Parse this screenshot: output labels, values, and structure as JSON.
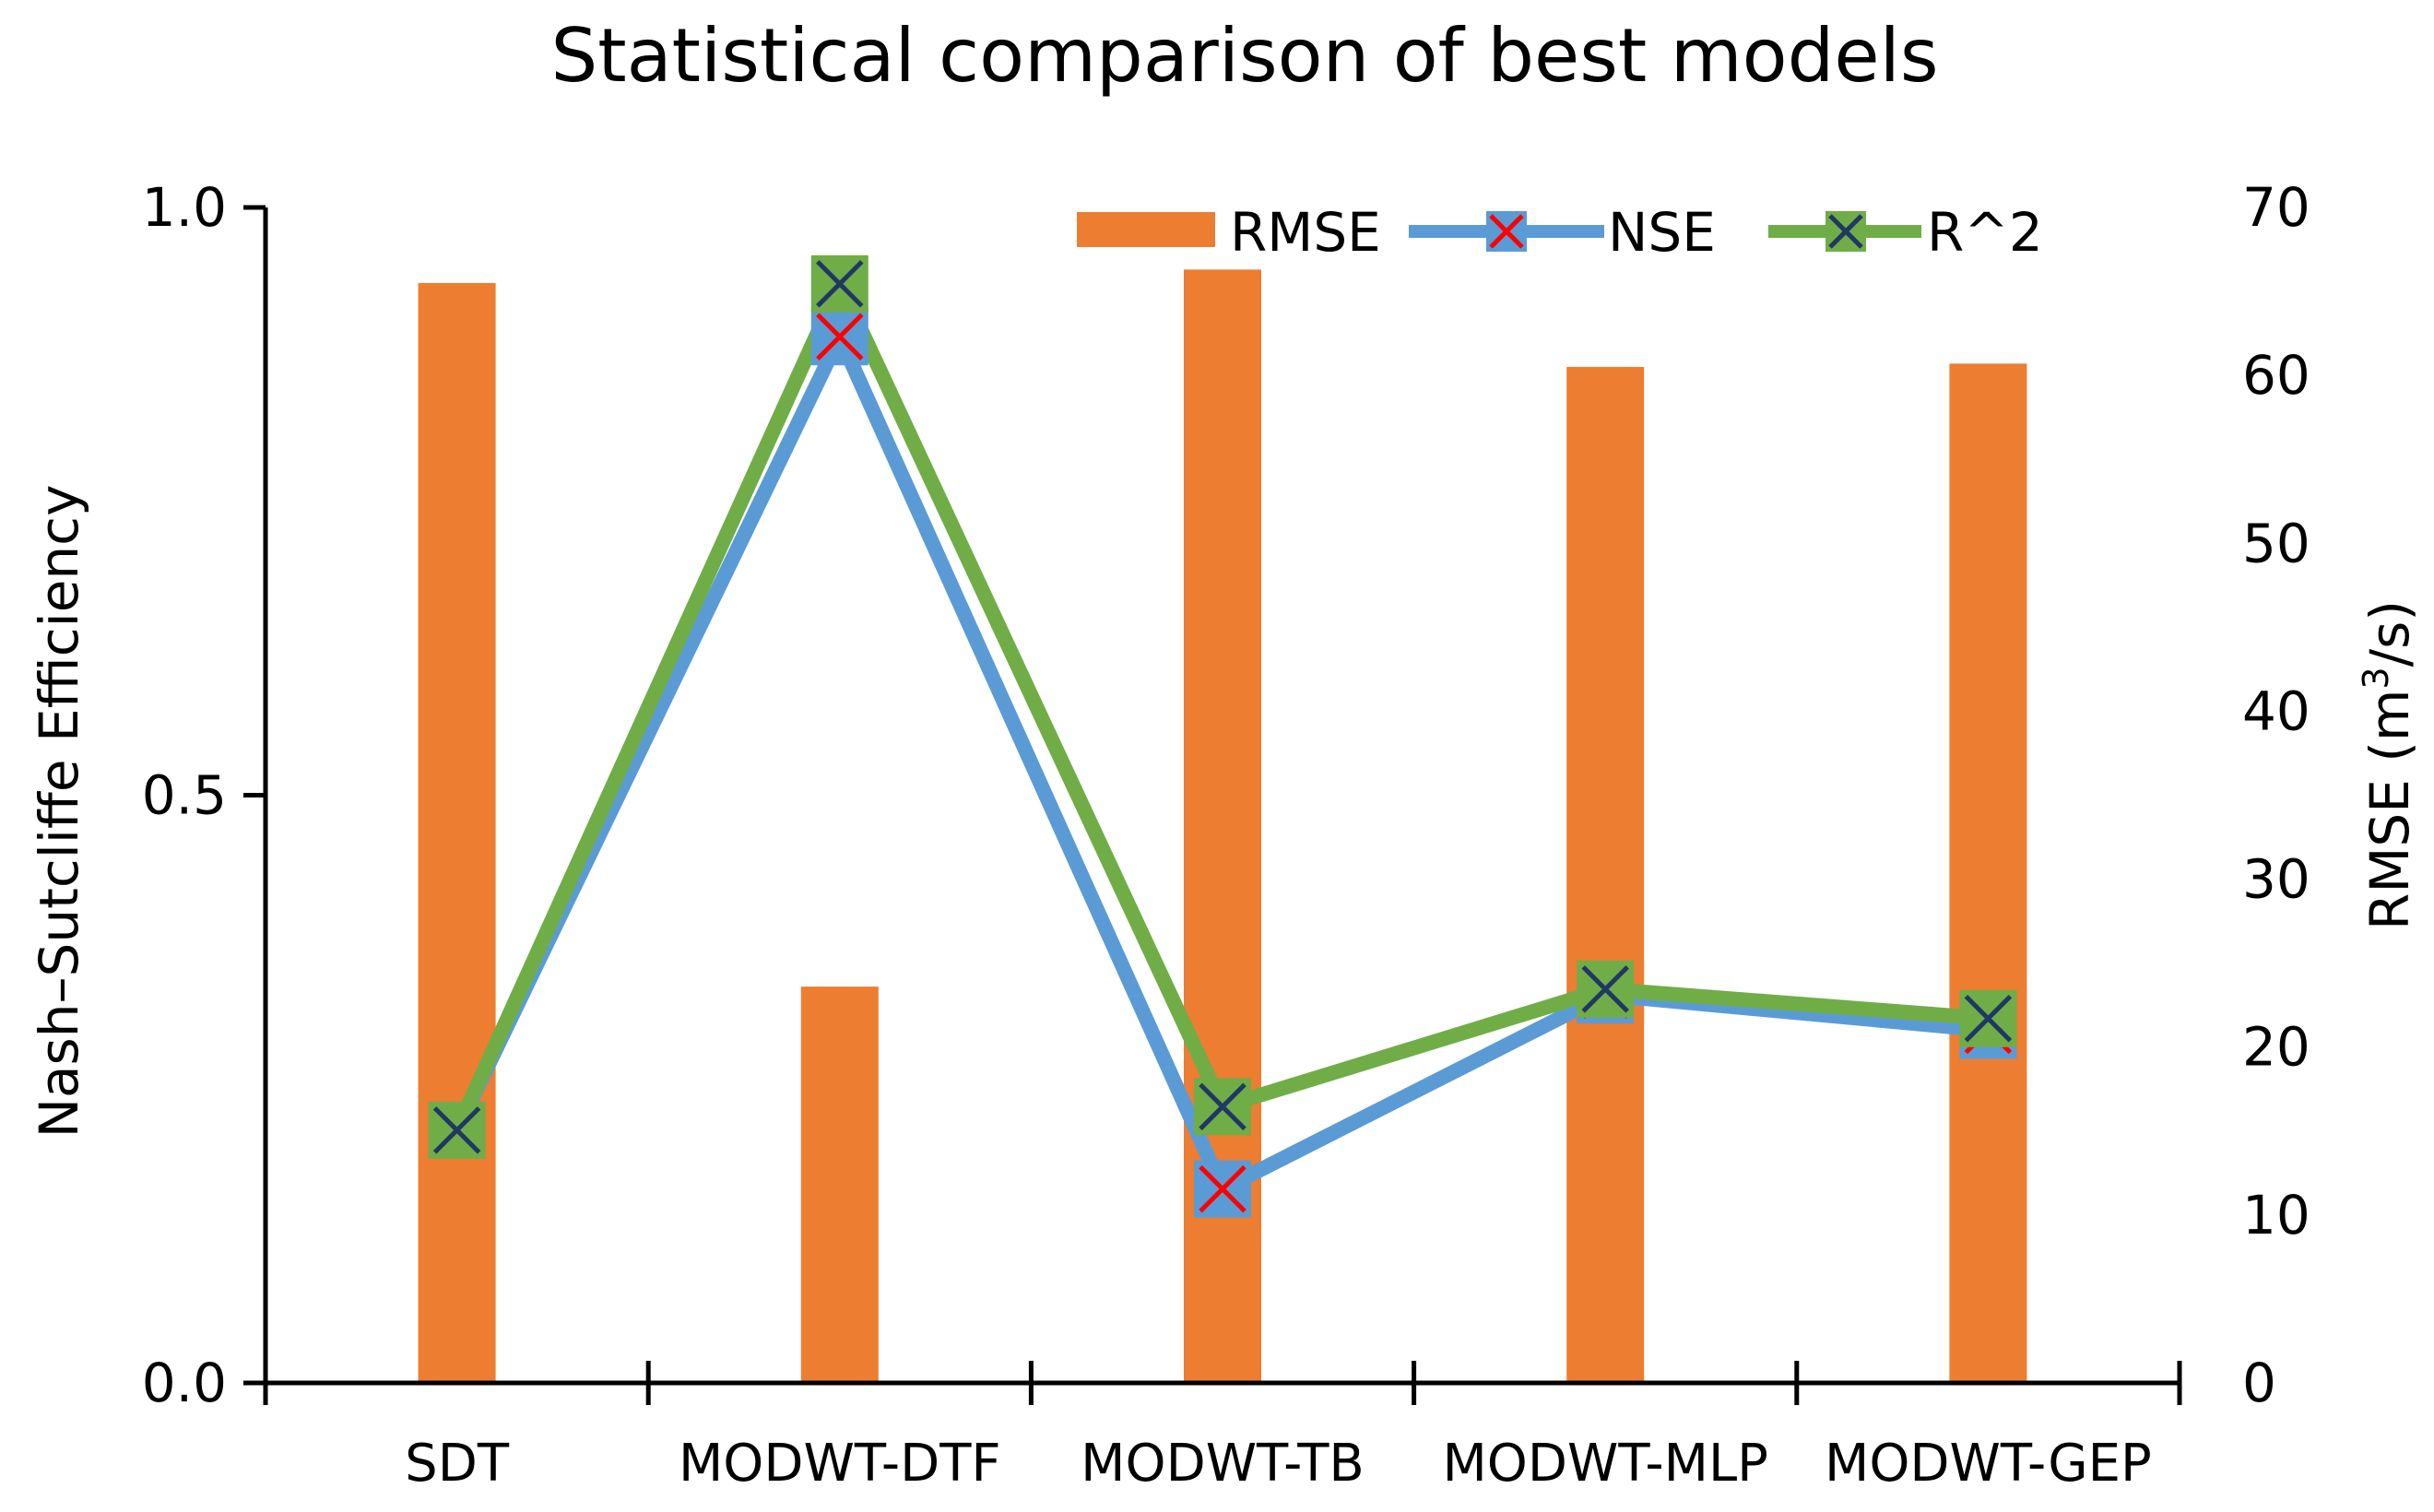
{
  "chart_data": {
    "type": "bar+line",
    "title": "Statistical comparison of best models",
    "categories": [
      "SDT",
      "MODWT-DTF",
      "MODWT-TB",
      "MODWT-MLP",
      "MODWT-GEP"
    ],
    "left_axis": {
      "label": "Nash–Sutcliffe Efficiency",
      "ylim": [
        0,
        1
      ],
      "ticks": [
        "0.0",
        "0.5",
        "1.0"
      ],
      "tick_values": [
        0,
        0.5,
        1.0
      ]
    },
    "right_axis": {
      "label_main": "RMSE (m",
      "label_sup": "3",
      "label_end": "/s)",
      "ylim": [
        0,
        70
      ],
      "ticks": [
        "0",
        "10",
        "20",
        "30",
        "40",
        "50",
        "60",
        "70"
      ],
      "tick_values": [
        0,
        10,
        20,
        30,
        40,
        50,
        60,
        70
      ]
    },
    "series": [
      {
        "name": "RMSE",
        "type": "bar",
        "axis": "right",
        "color": "#ED7D31",
        "values": [
          65.5,
          23.6,
          66.3,
          60.5,
          60.7
        ]
      },
      {
        "name": "NSE",
        "type": "line",
        "axis": "left",
        "color": "#5B9BD5",
        "marker_color": "#FF0000",
        "values": [
          0.215,
          0.89,
          0.165,
          0.33,
          0.3
        ]
      },
      {
        "name": "R^2",
        "type": "line",
        "axis": "left",
        "color": "#70AD47",
        "marker_color": "#1F3864",
        "values": [
          0.215,
          0.935,
          0.235,
          0.335,
          0.31
        ]
      }
    ],
    "legend_position": "top-right",
    "grid": false
  }
}
